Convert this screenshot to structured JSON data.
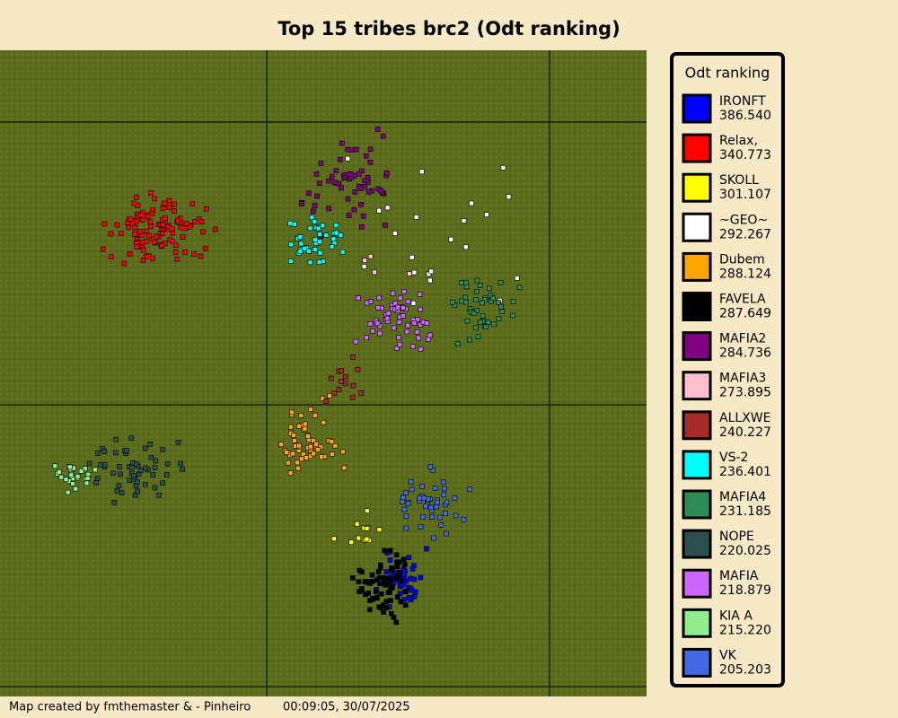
{
  "title": "Top 15 tribes brc2 (Odt ranking)",
  "legend": {
    "title": "Odt ranking",
    "tribes": [
      {
        "name": "IRONFT",
        "score": "386.540",
        "color": "#0000ff"
      },
      {
        "name": "Relax,",
        "score": "340.773",
        "color": "#ff0000"
      },
      {
        "name": "SKOLL",
        "score": "301.107",
        "color": "#ffff00"
      },
      {
        "name": "~GEO~",
        "score": "292.267",
        "color": "#ffffff"
      },
      {
        "name": "Dubem",
        "score": "288.124",
        "color": "#ffa500"
      },
      {
        "name": "FAVELA",
        "score": "287.649",
        "color": "#000000"
      },
      {
        "name": "MAFIA2",
        "score": "284.736",
        "color": "#800080"
      },
      {
        "name": "MAFIA3",
        "score": "273.895",
        "color": "#ffc0cb"
      },
      {
        "name": "ALLXWE",
        "score": "240.227",
        "color": "#a52a2a"
      },
      {
        "name": "VS-2",
        "score": "236.401",
        "color": "#00ffff"
      },
      {
        "name": "MAFIA4",
        "score": "231.185",
        "color": "#2e8b57"
      },
      {
        "name": "NOPE",
        "score": "220.025",
        "color": "#2f4f4f"
      },
      {
        "name": "MAFIA",
        "score": "218.879",
        "color": "#cc66ff"
      },
      {
        "name": "KIA A",
        "score": "215.220",
        "color": "#90ee90"
      },
      {
        "name": "VK",
        "score": "205.203",
        "color": "#4169e1"
      }
    ]
  },
  "footer": {
    "credit": "Map created by fmthemaster & - Pinheiro",
    "timestamp": "00:09:05, 30/07/2025"
  }
}
